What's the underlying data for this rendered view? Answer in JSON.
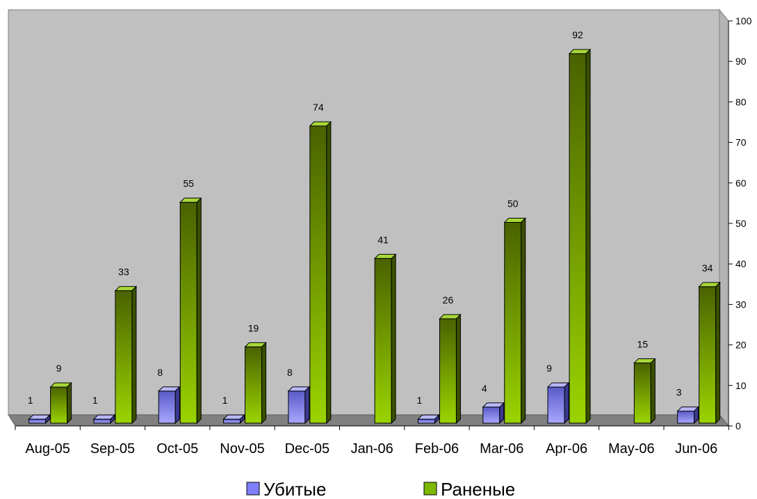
{
  "chart_data": {
    "type": "bar",
    "categories": [
      "Aug-05",
      "Sep-05",
      "Oct-05",
      "Nov-05",
      "Dec-05",
      "Jan-06",
      "Feb-06",
      "Mar-06",
      "Apr-06",
      "May-06",
      "Jun-06"
    ],
    "series": [
      {
        "name": "Убитые",
        "values": [
          1,
          1,
          8,
          1,
          8,
          null,
          1,
          4,
          9,
          null,
          3
        ],
        "color": "#8080ff"
      },
      {
        "name": "Раненые",
        "values": [
          9,
          33,
          55,
          19,
          74,
          41,
          26,
          50,
          92,
          15,
          34
        ],
        "color": "#7fb800"
      }
    ],
    "y_ticks": [
      "0",
      "10",
      "20",
      "30",
      "40",
      "50",
      "60",
      "70",
      "80",
      "90",
      "100"
    ],
    "ylim": [
      0,
      100
    ],
    "y_axis_side": "right",
    "grid": false,
    "three_d": true,
    "data_labels": true,
    "legend_position": "bottom"
  }
}
